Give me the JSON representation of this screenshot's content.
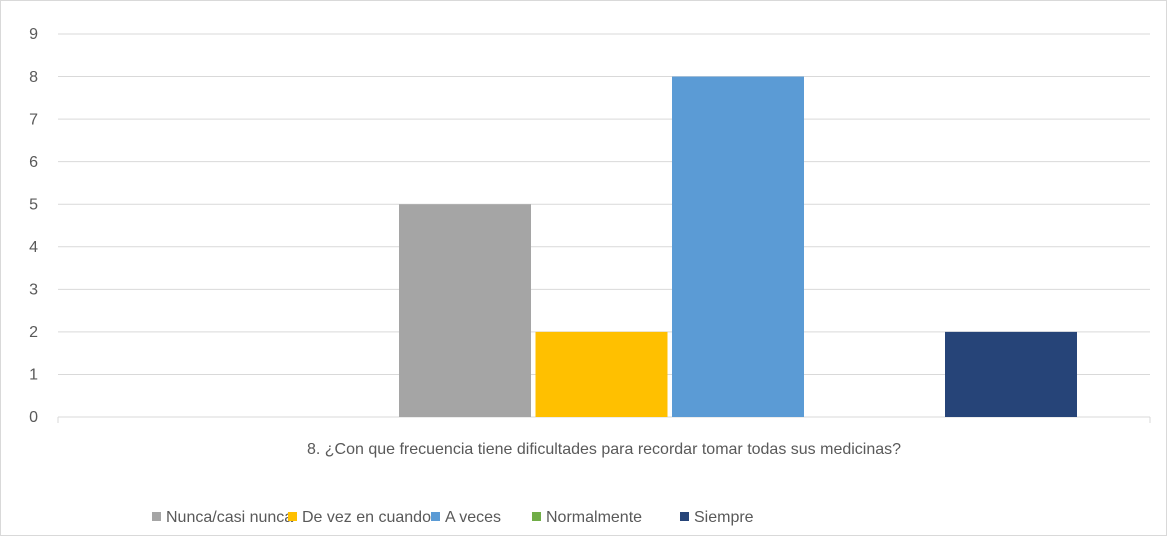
{
  "chart_data": {
    "type": "bar",
    "categories": [
      "8. ¿Con que frecuencia tiene dificultades para recordar tomar todas sus medicinas?"
    ],
    "series": [
      {
        "name": "Nunca/casi nunca",
        "color": "#a5a5a5",
        "values": [
          5
        ]
      },
      {
        "name": "De vez en cuando",
        "color": "#ffc000",
        "values": [
          2
        ]
      },
      {
        "name": "A veces",
        "color": "#5b9bd5",
        "values": [
          8
        ]
      },
      {
        "name": "Normalmente",
        "color": "#70ad47",
        "values": [
          0
        ]
      },
      {
        "name": "Siempre",
        "color": "#264478",
        "values": [
          2
        ]
      }
    ],
    "ylim": [
      0,
      9
    ],
    "yticks": [
      0,
      1,
      2,
      3,
      4,
      5,
      6,
      7,
      8,
      9
    ],
    "grid": true,
    "legend": "bottom"
  }
}
